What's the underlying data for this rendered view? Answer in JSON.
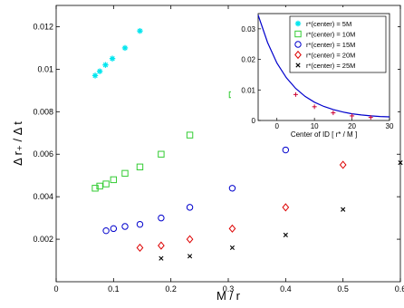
{
  "chart_data": [
    {
      "type": "scatter",
      "xlabel": "M / r",
      "ylabel": "Δ r₊ / Δ t",
      "xlim": [
        0,
        0.6
      ],
      "ylim": [
        0,
        0.013
      ],
      "xticks": [
        "0",
        "0.1",
        "0.2",
        "0.3",
        "0.4",
        "0.5",
        "0.6"
      ],
      "yticks": [
        "0.002",
        "0.004",
        "0.006",
        "0.008",
        "0.01",
        "0.012"
      ],
      "legend_position": "top-right (inside inset)",
      "series": [
        {
          "name": "r*(center) = 5M",
          "marker": "asterisk",
          "color": "#00e5ee",
          "points": [
            [
              0.068,
              0.0097
            ],
            [
              0.076,
              0.0099
            ],
            [
              0.086,
              0.0102
            ],
            [
              0.098,
              0.0105
            ],
            [
              0.12,
              0.011
            ],
            [
              0.146,
              0.0118
            ]
          ]
        },
        {
          "name": "r*(center) = 10M",
          "marker": "square",
          "color": "#33cc33",
          "points": [
            [
              0.068,
              0.0044
            ],
            [
              0.076,
              0.0045
            ],
            [
              0.087,
              0.0046
            ],
            [
              0.1,
              0.0048
            ],
            [
              0.12,
              0.0051
            ],
            [
              0.146,
              0.0054
            ],
            [
              0.183,
              0.006
            ],
            [
              0.233,
              0.0069
            ],
            [
              0.307,
              0.0088
            ]
          ]
        },
        {
          "name": "r*(center) = 15M",
          "marker": "circle",
          "color": "#0000cc",
          "points": [
            [
              0.087,
              0.0024
            ],
            [
              0.1,
              0.0025
            ],
            [
              0.12,
              0.0026
            ],
            [
              0.146,
              0.0027
            ],
            [
              0.183,
              0.003
            ],
            [
              0.233,
              0.0035
            ],
            [
              0.307,
              0.0044
            ],
            [
              0.4,
              0.0062
            ]
          ]
        },
        {
          "name": "r*(center) = 20M",
          "marker": "diamond",
          "color": "#dd0000",
          "points": [
            [
              0.146,
              0.0016
            ],
            [
              0.183,
              0.0017
            ],
            [
              0.233,
              0.002
            ],
            [
              0.307,
              0.0025
            ],
            [
              0.4,
              0.0035
            ],
            [
              0.5,
              0.0055
            ]
          ]
        },
        {
          "name": "r*(center) = 25M",
          "marker": "x",
          "color": "#000000",
          "points": [
            [
              0.183,
              0.0011
            ],
            [
              0.233,
              0.0012
            ],
            [
              0.307,
              0.0016
            ],
            [
              0.4,
              0.0022
            ],
            [
              0.5,
              0.0034
            ],
            [
              0.6,
              0.0056
            ]
          ]
        }
      ]
    },
    {
      "type": "line",
      "xlabel": "Center of ID [ r* / M ]",
      "ylabel": "",
      "xlim": [
        -5,
        30
      ],
      "ylim": [
        0,
        0.035
      ],
      "xticks": [
        "0",
        "10",
        "20",
        "30"
      ],
      "yticks": [
        "0",
        "0.01",
        "0.02",
        "0.03"
      ],
      "curve_color": "#0000cc",
      "points_color": "#cc0033",
      "curve": [
        [
          -5,
          0.0345
        ],
        [
          -2.5,
          0.0255
        ],
        [
          0,
          0.0188
        ],
        [
          2.5,
          0.014
        ],
        [
          5,
          0.0105
        ],
        [
          7.5,
          0.0079
        ],
        [
          10,
          0.006
        ],
        [
          12.5,
          0.0046
        ],
        [
          15,
          0.0036
        ],
        [
          17.5,
          0.0028
        ],
        [
          20,
          0.0022
        ],
        [
          22.5,
          0.0018
        ],
        [
          25,
          0.0015
        ],
        [
          27.5,
          0.0013
        ],
        [
          30,
          0.0012
        ]
      ],
      "points": [
        [
          5,
          0.0085
        ],
        [
          10,
          0.0045
        ],
        [
          15,
          0.0025
        ],
        [
          20,
          0.0015
        ],
        [
          25,
          0.001
        ]
      ]
    }
  ]
}
